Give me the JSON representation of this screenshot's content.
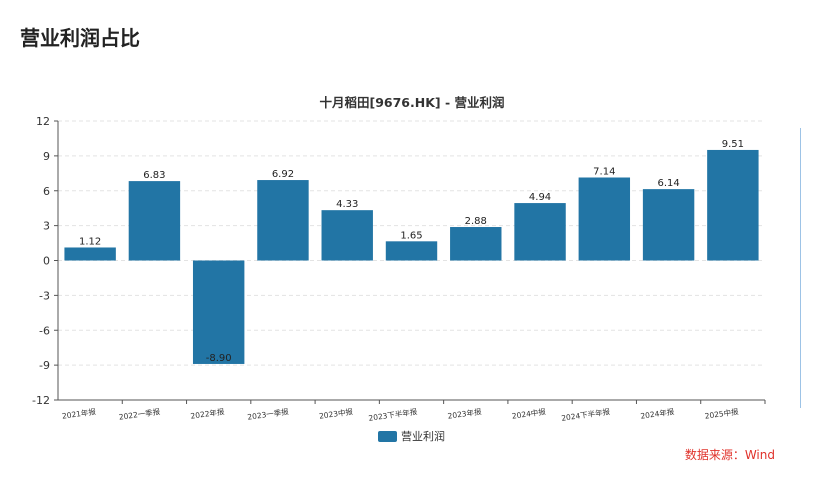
{
  "page": {
    "title": "营业利润占比",
    "source": "数据来源：Wind"
  },
  "chart_data": {
    "type": "bar",
    "title": "十月稻田[9676.HK] - 营业利润",
    "categories": [
      "2021年报",
      "2022一季报",
      "2022年报",
      "2023一季报",
      "2023中报",
      "2023下半年报",
      "2023年报",
      "2024中报",
      "2024下半年报",
      "2024年报",
      "2025中报"
    ],
    "series": [
      {
        "name": "营业利润",
        "values": [
          1.12,
          6.83,
          -8.9,
          6.92,
          4.33,
          1.65,
          2.88,
          4.94,
          7.14,
          6.14,
          9.51
        ],
        "color": "#2275a5"
      }
    ],
    "data_labels": [
      "1.12",
      "6.83",
      "-8.90",
      "6.92",
      "4.33",
      "1.65",
      "2.88",
      "4.94",
      "7.14",
      "6.14",
      "9.51"
    ],
    "ylim": [
      -12,
      12
    ],
    "yticks": [
      12,
      9,
      6,
      3,
      0,
      -3,
      -6,
      -9,
      -12
    ],
    "grid": true,
    "legend_position": "bottom"
  }
}
